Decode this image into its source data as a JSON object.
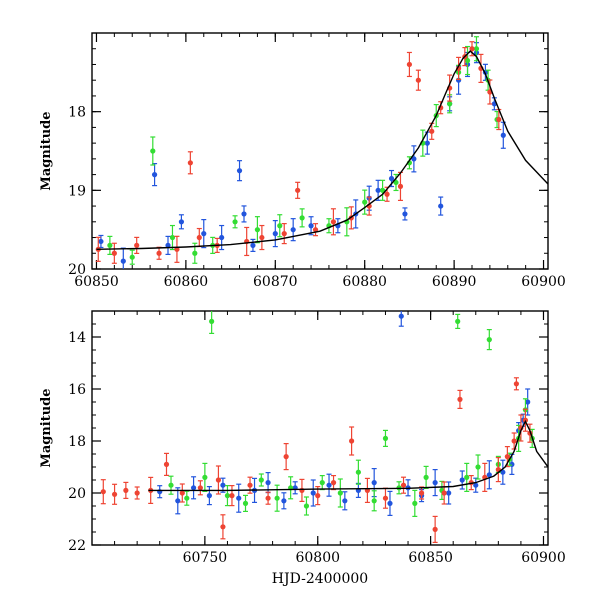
{
  "chart_data": [
    {
      "type": "scatter",
      "title": "",
      "xlabel": "",
      "ylabel": "Magnitude",
      "xlim": [
        60849.5,
        60900.5
      ],
      "ylim": [
        20,
        17.0
      ],
      "y_inverted": true,
      "xticks": [
        60850,
        60860,
        60870,
        60880,
        60890,
        60900
      ],
      "yticks": [
        18,
        19,
        20
      ],
      "model_curve": {
        "color": "#000000",
        "points": [
          [
            60850,
            19.75
          ],
          [
            60855,
            19.74
          ],
          [
            60860,
            19.72
          ],
          [
            60865,
            19.69
          ],
          [
            60870,
            19.63
          ],
          [
            60875,
            19.52
          ],
          [
            60878,
            19.38
          ],
          [
            60880,
            19.22
          ],
          [
            60882,
            19.05
          ],
          [
            60884,
            18.78
          ],
          [
            60886,
            18.46
          ],
          [
            60888,
            18.05
          ],
          [
            60889,
            17.78
          ],
          [
            60890,
            17.52
          ],
          [
            60891,
            17.32
          ],
          [
            60891.8,
            17.23
          ],
          [
            60892.5,
            17.3
          ],
          [
            60893.5,
            17.52
          ],
          [
            60894.5,
            17.83
          ],
          [
            60896,
            18.25
          ],
          [
            60898,
            18.62
          ],
          [
            60900.5,
            18.92
          ]
        ]
      },
      "series": [
        {
          "color": "#2255dd",
          "points": [
            [
              60850.5,
              19.65
            ],
            [
              60853,
              19.9
            ],
            [
              60856.5,
              18.8
            ],
            [
              60858,
              19.7
            ],
            [
              60859.5,
              19.4
            ],
            [
              60862,
              19.55
            ],
            [
              60864,
              19.6
            ],
            [
              60866,
              18.75
            ],
            [
              60866.5,
              19.3
            ],
            [
              60867.5,
              19.7
            ],
            [
              60870,
              19.55
            ],
            [
              60872,
              19.5
            ],
            [
              60874,
              19.45
            ],
            [
              60877,
              19.45
            ],
            [
              60879,
              19.3
            ],
            [
              60880.5,
              19.1
            ],
            [
              60881.5,
              19.0
            ],
            [
              60883,
              18.85
            ],
            [
              60884.5,
              19.3
            ],
            [
              60885.5,
              18.6
            ],
            [
              60887,
              18.4
            ],
            [
              60888.5,
              19.2
            ],
            [
              60889.5,
              17.9
            ],
            [
              60890.5,
              17.6
            ],
            [
              60891.5,
              17.4
            ],
            [
              60892.5,
              17.25
            ],
            [
              60893.5,
              17.5
            ],
            [
              60894.5,
              17.9
            ],
            [
              60895.5,
              18.3
            ]
          ]
        },
        {
          "color": "#33dd33",
          "points": [
            [
              60851.5,
              19.7
            ],
            [
              60854,
              19.85
            ],
            [
              60856.3,
              18.5
            ],
            [
              60858.5,
              19.6
            ],
            [
              60861,
              19.8
            ],
            [
              60863,
              19.7
            ],
            [
              60865.5,
              19.4
            ],
            [
              60868,
              19.5
            ],
            [
              60870.5,
              19.45
            ],
            [
              60873,
              19.35
            ],
            [
              60876,
              19.45
            ],
            [
              60878,
              19.4
            ],
            [
              60880,
              19.15
            ],
            [
              60882,
              19.0
            ],
            [
              60883.5,
              18.9
            ],
            [
              60885,
              18.65
            ],
            [
              60886.5,
              18.4
            ],
            [
              60888,
              18.05
            ],
            [
              60889.5,
              17.9
            ],
            [
              60890.5,
              17.5
            ],
            [
              60891.5,
              17.35
            ],
            [
              60892.5,
              17.2
            ],
            [
              60893.8,
              17.6
            ],
            [
              60894.8,
              18.1
            ]
          ]
        },
        {
          "color": "#ee4433",
          "points": [
            [
              60850.2,
              19.75
            ],
            [
              60852,
              19.8
            ],
            [
              60854.5,
              19.7
            ],
            [
              60857,
              19.8
            ],
            [
              60859,
              19.75
            ],
            [
              60860.5,
              18.65
            ],
            [
              60861.5,
              19.6
            ],
            [
              60863.5,
              19.7
            ],
            [
              60866.8,
              19.65
            ],
            [
              60868.5,
              19.6
            ],
            [
              60871,
              19.55
            ],
            [
              60872.5,
              19.0
            ],
            [
              60874.5,
              19.5
            ],
            [
              60876.5,
              19.4
            ],
            [
              60878.5,
              19.35
            ],
            [
              60880.5,
              19.2
            ],
            [
              60882.5,
              19.05
            ],
            [
              60884,
              18.95
            ],
            [
              60885,
              17.4
            ],
            [
              60886,
              17.6
            ],
            [
              60887.5,
              18.25
            ],
            [
              60888.5,
              17.95
            ],
            [
              60889.5,
              17.7
            ],
            [
              60890.5,
              17.45
            ],
            [
              60891.2,
              17.3
            ],
            [
              60892,
              17.2
            ],
            [
              60893,
              17.45
            ],
            [
              60894,
              17.75
            ],
            [
              60895,
              18.1
            ]
          ]
        }
      ]
    },
    {
      "type": "scatter",
      "title": "",
      "xlabel": "HJD-2400000",
      "ylabel": "Magnitude",
      "xlim": [
        60700,
        60902
      ],
      "ylim": [
        22,
        13.0
      ],
      "y_inverted": true,
      "xticks": [
        60750,
        60800,
        60850,
        60900
      ],
      "yticks": [
        14,
        16,
        18,
        20,
        22
      ],
      "model_curve": {
        "color": "#000000",
        "points": [
          [
            60725,
            19.9
          ],
          [
            60760,
            19.9
          ],
          [
            60800,
            19.85
          ],
          [
            60840,
            19.82
          ],
          [
            60860,
            19.75
          ],
          [
            60870,
            19.6
          ],
          [
            60878,
            19.35
          ],
          [
            60883,
            19.0
          ],
          [
            60887,
            18.4
          ],
          [
            60890,
            17.6
          ],
          [
            60892,
            17.25
          ],
          [
            60894,
            17.6
          ],
          [
            60897,
            18.4
          ],
          [
            60902,
            19.0
          ]
        ]
      },
      "series": [
        {
          "color": "#2255dd",
          "points": [
            [
              60730,
              19.95
            ],
            [
              60738,
              20.3
            ],
            [
              60745,
              19.8
            ],
            [
              60752,
              20.1
            ],
            [
              60758,
              19.7
            ],
            [
              60765,
              20.2
            ],
            [
              60772,
              19.9
            ],
            [
              60778,
              19.6
            ],
            [
              60785,
              20.3
            ],
            [
              60790,
              19.8
            ],
            [
              60798,
              20.0
            ],
            [
              60805,
              19.7
            ],
            [
              60812,
              20.3
            ],
            [
              60818,
              19.9
            ],
            [
              60825,
              19.6
            ],
            [
              60832,
              20.4
            ],
            [
              60837,
              13.2
            ],
            [
              60840,
              19.8
            ],
            [
              60846,
              20.1
            ],
            [
              60852,
              19.6
            ],
            [
              60858,
              20.0
            ],
            [
              60864,
              19.5
            ],
            [
              60870,
              19.7
            ],
            [
              60876,
              19.3
            ],
            [
              60882,
              19.2
            ],
            [
              60886,
              18.9
            ],
            [
              60889,
              17.6
            ],
            [
              60891,
              17.2
            ],
            [
              60893,
              16.5
            ]
          ]
        },
        {
          "color": "#33dd33",
          "points": [
            [
              60735,
              19.7
            ],
            [
              60742,
              20.2
            ],
            [
              60750,
              19.4
            ],
            [
              60753,
              13.4
            ],
            [
              60760,
              20.1
            ],
            [
              60768,
              20.4
            ],
            [
              60775,
              19.5
            ],
            [
              60782,
              20.2
            ],
            [
              60788,
              19.8
            ],
            [
              60795,
              20.5
            ],
            [
              60802,
              19.6
            ],
            [
              60810,
              20.0
            ],
            [
              60818,
              19.2
            ],
            [
              60825,
              20.3
            ],
            [
              60830,
              17.9
            ],
            [
              60836,
              19.8
            ],
            [
              60843,
              20.4
            ],
            [
              60848,
              19.4
            ],
            [
              60855,
              19.9
            ],
            [
              60862,
              13.4
            ],
            [
              60866,
              19.4
            ],
            [
              60871,
              19.0
            ],
            [
              60876,
              14.1
            ],
            [
              60880,
              18.9
            ],
            [
              60885,
              18.7
            ],
            [
              60889,
              17.9
            ],
            [
              60892,
              16.8
            ],
            [
              60895,
              17.9
            ]
          ]
        },
        {
          "color": "#ee4433",
          "points": [
            [
              60705,
              19.95
            ],
            [
              60710,
              20.05
            ],
            [
              60715,
              19.9
            ],
            [
              60720,
              20.0
            ],
            [
              60726,
              19.9
            ],
            [
              60733,
              18.9
            ],
            [
              60740,
              20.0
            ],
            [
              60748,
              19.8
            ],
            [
              60756,
              19.5
            ],
            [
              60758,
              21.3
            ],
            [
              60762,
              20.1
            ],
            [
              60770,
              19.7
            ],
            [
              60778,
              20.2
            ],
            [
              60786,
              18.6
            ],
            [
              60793,
              19.9
            ],
            [
              60800,
              20.1
            ],
            [
              60807,
              19.6
            ],
            [
              60815,
              18.0
            ],
            [
              60822,
              19.9
            ],
            [
              60830,
              20.2
            ],
            [
              60838,
              19.7
            ],
            [
              60846,
              20.0
            ],
            [
              60852,
              21.4
            ],
            [
              60856,
              20.0
            ],
            [
              60863,
              16.4
            ],
            [
              60868,
              19.6
            ],
            [
              60874,
              19.4
            ],
            [
              60880,
              19.1
            ],
            [
              60884,
              18.6
            ],
            [
              60887,
              18.0
            ],
            [
              60888,
              15.8
            ],
            [
              60890,
              17.5
            ],
            [
              60892,
              17.2
            ],
            [
              60894,
              17.7
            ]
          ]
        }
      ]
    }
  ]
}
